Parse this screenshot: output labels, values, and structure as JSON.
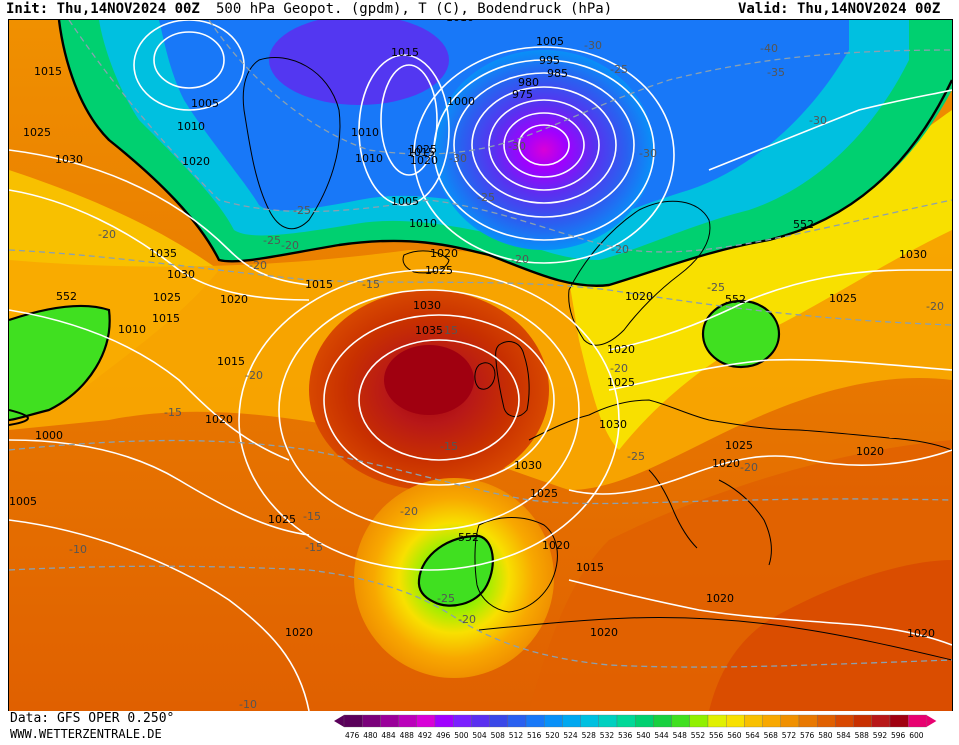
{
  "header": {
    "init": "Init: Thu,14NOV2024 00Z",
    "title": "500 hPa Geopot. (gpdm), T (C), Bodendruck (hPa)",
    "valid": "Valid: Thu,14NOV2024 00Z"
  },
  "footer": {
    "data_source": "Data: GFS OPER 0.250°",
    "website": "WWW.WETTERZENTRALE.DE"
  },
  "colorbar": {
    "values": [
      "476",
      "480",
      "484",
      "488",
      "492",
      "496",
      "500",
      "504",
      "508",
      "512",
      "516",
      "520",
      "524",
      "528",
      "532",
      "536",
      "540",
      "544",
      "548",
      "552",
      "556",
      "560",
      "564",
      "568",
      "572",
      "576",
      "580",
      "584",
      "588",
      "592",
      "596",
      "600"
    ],
    "colors": [
      "#5a005a",
      "#7a007a",
      "#9a009a",
      "#bb00bb",
      "#d800d8",
      "#a000ff",
      "#7a20ff",
      "#5a30f0",
      "#3a48e8",
      "#2a60f0",
      "#1878f8",
      "#0890f8",
      "#00a8f0",
      "#00c0e0",
      "#00d0c0",
      "#00d898",
      "#00d070",
      "#18d040",
      "#40e020",
      "#90f000",
      "#e0f000",
      "#f8e000",
      "#f8c000",
      "#f8a800",
      "#f09000",
      "#e87800",
      "#e06000",
      "#d84800",
      "#c83000",
      "#b81818",
      "#a00010",
      "#e80070"
    ]
  },
  "pressure_labels": [
    "1010",
    "1015",
    "1005",
    "995",
    "985",
    "980",
    "975",
    "1000",
    "1010",
    "1025",
    "1020",
    "1015",
    "1010",
    "1005",
    "1010",
    "1020",
    "1015",
    "1025",
    "1030",
    "1035",
    "1030",
    "1025",
    "1020",
    "1015",
    "1005",
    "1010",
    "1015",
    "1020",
    "1000",
    "1005",
    "1030",
    "1035",
    "1025",
    "1020",
    "1015",
    "1010",
    "1030",
    "1020",
    "1025",
    "1020",
    "1030",
    "1025",
    "1020",
    "1015",
    "1020",
    "1020",
    "1020",
    "1020",
    "1020",
    "1025",
    "1020",
    "1030",
    "1025",
    "1025"
  ],
  "temperature_labels": [
    "-30",
    "-25",
    "-35",
    "-40",
    "-30",
    "-30",
    "-30",
    "-25",
    "-30",
    "-20",
    "-25",
    "-25",
    "-20",
    "-20",
    "-15",
    "-20",
    "-15",
    "-20",
    "-20",
    "-25",
    "-20",
    "-15",
    "-15",
    "-20",
    "-10",
    "-15",
    "-25",
    "-20",
    "-20",
    "-10",
    "-15",
    "-25",
    "-20"
  ],
  "geopot_labels": [
    "552",
    "552",
    "552",
    "552"
  ]
}
